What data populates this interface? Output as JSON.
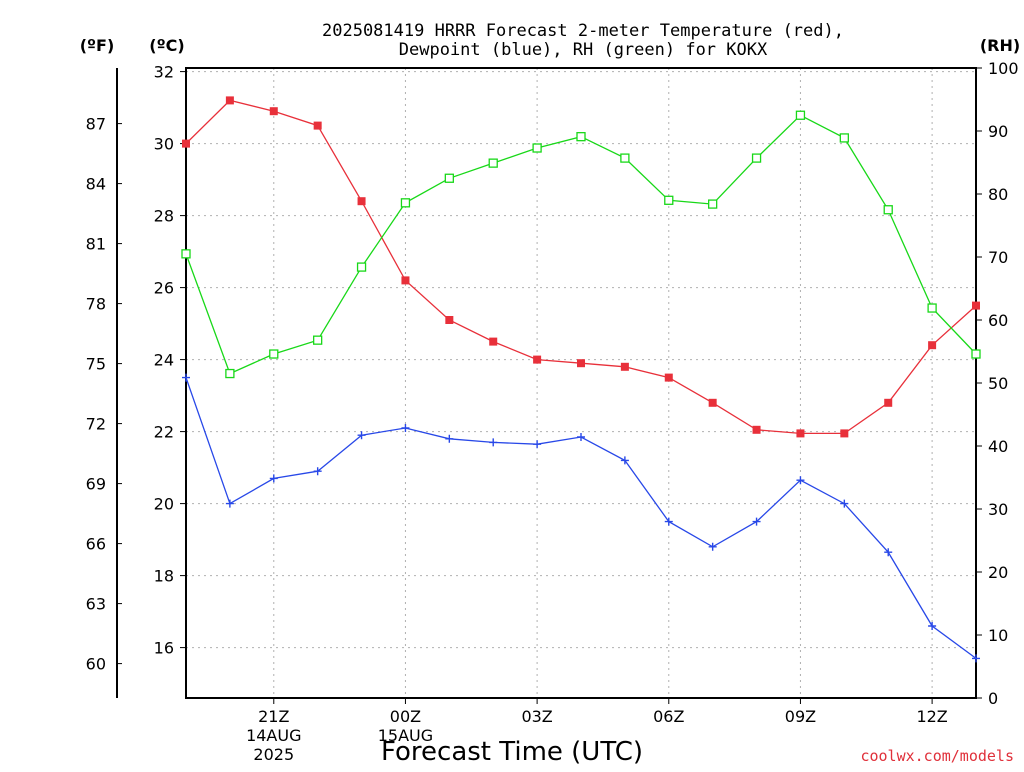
{
  "chart_data": {
    "type": "line",
    "title_line1": "2025081419 HRRR Forecast 2-meter Temperature (red),",
    "title_line2": "Dewpoint (blue), RH (green) for KOKX",
    "unit_labels": {
      "fahrenheit": "(ºF)",
      "celsius": "(ºC)",
      "rh": "(RH)"
    },
    "xlabel": "Forecast Time (UTC)",
    "credit": "coolwx.com/models",
    "x_hours": [
      19,
      20,
      21,
      22,
      23,
      24,
      25,
      26,
      27,
      28,
      29,
      30,
      31,
      32,
      33,
      34,
      35,
      36,
      37
    ],
    "xlim": [
      19,
      37
    ],
    "x_ticks": [
      {
        "hour": 21,
        "label": "21Z",
        "date": "14AUG",
        "year": "2025"
      },
      {
        "hour": 24,
        "label": "00Z",
        "date": "15AUG",
        "year": ""
      },
      {
        "hour": 27,
        "label": "03Z",
        "date": "",
        "year": ""
      },
      {
        "hour": 30,
        "label": "06Z",
        "date": "",
        "year": ""
      },
      {
        "hour": 33,
        "label": "09Z",
        "date": "",
        "year": ""
      },
      {
        "hour": 36,
        "label": "12Z",
        "date": "",
        "year": ""
      }
    ],
    "celsius_axis": {
      "ylim": [
        14.6,
        32.1
      ],
      "ticks": [
        16,
        18,
        20,
        22,
        24,
        26,
        28,
        30,
        32
      ]
    },
    "fahrenheit_axis": {
      "ticks": [
        60,
        63,
        66,
        69,
        72,
        75,
        78,
        81,
        84,
        87
      ]
    },
    "rh_axis": {
      "ylim": [
        0,
        100
      ],
      "ticks": [
        0,
        10,
        20,
        30,
        40,
        50,
        60,
        70,
        80,
        90,
        100
      ]
    },
    "grid": true,
    "series": [
      {
        "name": "Temperature",
        "axis": "celsius",
        "color": "#e8303a",
        "marker": "filled-square",
        "values": [
          30.0,
          31.2,
          30.9,
          30.5,
          28.4,
          26.2,
          25.1,
          24.5,
          24.0,
          23.9,
          23.8,
          23.5,
          22.8,
          22.05,
          21.95,
          21.95,
          22.8,
          24.4,
          25.5
        ]
      },
      {
        "name": "Dewpoint",
        "axis": "celsius",
        "color": "#2848e8",
        "marker": "plus",
        "values": [
          23.5,
          20.0,
          20.7,
          20.9,
          21.9,
          22.1,
          21.8,
          21.7,
          21.65,
          21.85,
          21.2,
          19.5,
          18.8,
          19.5,
          20.65,
          20.0,
          18.65,
          16.6,
          15.7
        ]
      },
      {
        "name": "RH",
        "axis": "rh",
        "color": "#18d818",
        "marker": "open-square",
        "values": [
          70.5,
          51.5,
          54.6,
          56.8,
          68.4,
          78.6,
          82.5,
          84.9,
          87.3,
          89.1,
          85.7,
          79.0,
          78.4,
          85.7,
          92.5,
          88.9,
          77.5,
          61.9,
          54.6
        ]
      }
    ]
  }
}
